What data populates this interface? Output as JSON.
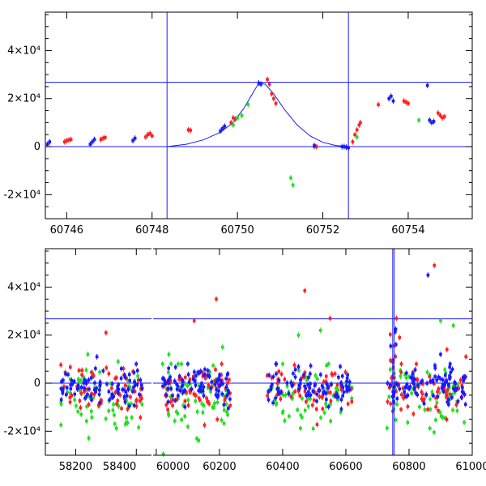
{
  "colors": {
    "red": "#ff2020",
    "green": "#20e020",
    "blue": "#1a1aff",
    "line": "#1a1aff",
    "axis": "#000000"
  },
  "chart_data": [
    {
      "type": "scatter",
      "title": "",
      "xlabel": "",
      "ylabel": "",
      "xlim": [
        60745.5,
        60755.5
      ],
      "ylim": [
        -30000,
        56000
      ],
      "xticks": [
        60746,
        60748,
        60750,
        60752,
        60754
      ],
      "xtick_labels": [
        "60746",
        "60748",
        "60750",
        "60752",
        "60754"
      ],
      "yticks": [
        -20000,
        0,
        20000,
        40000
      ],
      "ytick_labels": [
        "-2×10⁴",
        "0",
        "2×10⁴",
        "4×10⁴"
      ],
      "hlines": [
        0,
        26800
      ],
      "vlines": [
        60748.35,
        60752.6
      ],
      "model_curve": {
        "name": "model",
        "x": [
          60748.35,
          60748.8,
          60749.2,
          60749.6,
          60749.9,
          60750.15,
          60750.35,
          60750.5,
          60750.65,
          60750.85,
          60751.1,
          60751.4,
          60751.7,
          60752.0,
          60752.3,
          60752.6
        ],
        "y": [
          0,
          1000,
          2800,
          6000,
          10000,
          16000,
          22000,
          26500,
          26000,
          22000,
          15500,
          9000,
          4500,
          1800,
          500,
          0
        ]
      },
      "series": [
        {
          "name": "red",
          "color": "red",
          "x": [
            60745.95,
            60746.0,
            60746.05,
            60746.1,
            60746.8,
            60746.85,
            60746.9,
            60747.85,
            60747.9,
            60747.95,
            60748.0,
            60748.85,
            60748.9,
            60749.85,
            60749.9,
            60749.95,
            60750.7,
            60750.75,
            60750.8,
            60750.85,
            60750.9,
            60751.8,
            60751.85,
            60752.7,
            60752.75,
            60752.8,
            60752.85,
            60752.88,
            60753.3,
            60753.9,
            60753.95,
            60754.0,
            60754.7,
            60754.75,
            60754.8,
            60754.85
          ],
          "y": [
            2000,
            2500,
            2800,
            3000,
            3000,
            3500,
            3800,
            4000,
            5000,
            5500,
            4500,
            7000,
            6800,
            10000,
            12000,
            11500,
            28000,
            26000,
            22000,
            20000,
            18000,
            0,
            0,
            2000,
            5000,
            7000,
            9000,
            10000,
            17500,
            19000,
            18500,
            18000,
            14000,
            13000,
            12000,
            12500
          ]
        },
        {
          "name": "green",
          "color": "green",
          "x": [
            60749.9,
            60750.0,
            60750.1,
            60750.25,
            60751.25,
            60751.3,
            60752.8,
            60754.25
          ],
          "y": [
            9000,
            12000,
            13000,
            17500,
            -13000,
            -16000,
            4000,
            11000
          ]
        },
        {
          "name": "blue",
          "color": "blue",
          "x": [
            60745.55,
            60745.6,
            60746.55,
            60746.6,
            60746.65,
            60747.55,
            60747.6,
            60749.6,
            60749.65,
            60749.7,
            60750.5,
            60750.55,
            60751.8,
            60752.45,
            60752.5,
            60752.55,
            60752.6,
            60753.55,
            60753.6,
            60753.65,
            60754.45,
            60754.5,
            60754.55,
            60754.6
          ],
          "y": [
            1000,
            2000,
            1000,
            2000,
            3000,
            2500,
            3500,
            6500,
            7500,
            8500,
            26500,
            26000,
            500,
            0,
            0,
            -200,
            -500,
            20000,
            21000,
            19000,
            25500,
            11000,
            10000,
            10500
          ]
        }
      ]
    },
    {
      "type": "scatter",
      "title": "",
      "xlabel": "",
      "ylabel": "",
      "xlim": [
        58100,
        61000
      ],
      "xlim_gap": [
        58450,
        59990
      ],
      "ylim": [
        -30000,
        56000
      ],
      "xticks": [
        58200,
        58400,
        60000,
        60200,
        60400,
        60600,
        60800,
        61000
      ],
      "xtick_labels": [
        "58200",
        "58400",
        "60000",
        "60200",
        "60400",
        "60600",
        "60800",
        "61000"
      ],
      "yticks": [
        -20000,
        0,
        20000,
        40000
      ],
      "ytick_labels": [
        "-2×10⁴",
        "0",
        "2×10⁴",
        "4×10⁴"
      ],
      "hlines": [
        0,
        26800
      ],
      "vlines": [
        60748.35,
        60752.6
      ],
      "data_ranges": [
        [
          58150,
          58420
        ],
        [
          60020,
          60240
        ],
        [
          60350,
          60620
        ],
        [
          60730,
          60980
        ]
      ],
      "outliers": {
        "red": [
          [
            58300,
            21000
          ],
          [
            60120,
            26000
          ],
          [
            60190,
            35000
          ],
          [
            60470,
            38500
          ],
          [
            60550,
            27000
          ],
          [
            60760,
            27000
          ],
          [
            60770,
            19000
          ],
          [
            60880,
            49000
          ],
          [
            60920,
            14000
          ],
          [
            60980,
            11000
          ]
        ],
        "green": [
          [
            58240,
            12000
          ],
          [
            58340,
            9000
          ],
          [
            60040,
            12000
          ],
          [
            60210,
            15000
          ],
          [
            60450,
            20000
          ],
          [
            60520,
            22000
          ],
          [
            60900,
            26000
          ],
          [
            60940,
            24000
          ]
        ],
        "blue": [
          [
            58270,
            11000
          ],
          [
            60100,
            8000
          ],
          [
            60380,
            8000
          ],
          [
            60860,
            45000
          ],
          [
            60900,
            12000
          ],
          [
            60930,
            8000
          ]
        ]
      }
    }
  ]
}
